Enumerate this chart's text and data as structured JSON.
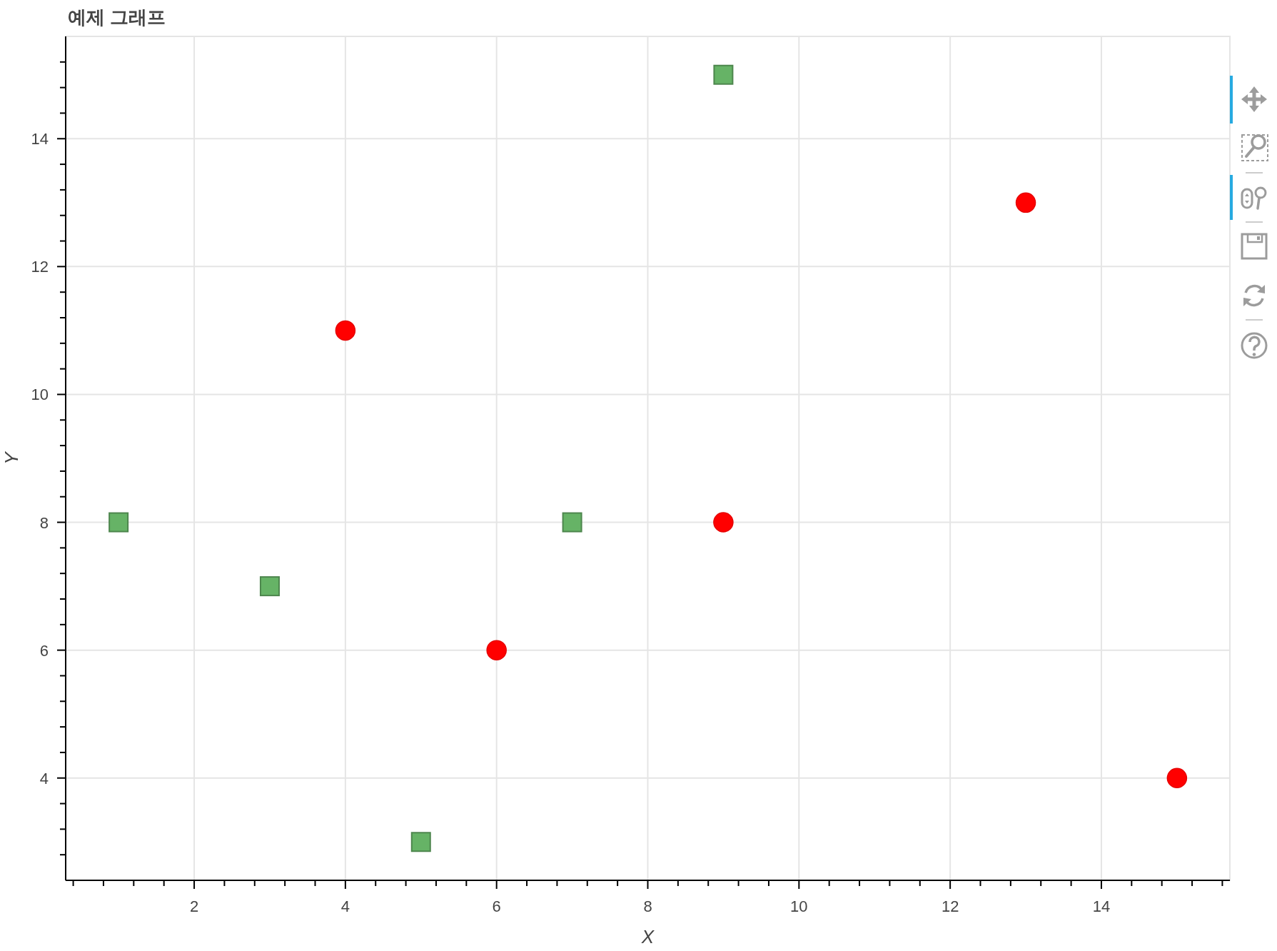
{
  "chart_data": {
    "type": "scatter",
    "title": "예제 그래프",
    "xlabel": "X",
    "ylabel": "Y",
    "xlim": [
      0.3,
      15.7
    ],
    "ylim": [
      2.4,
      15.6
    ],
    "xticks": [
      {
        "value": 0.4,
        "label": null
      },
      {
        "value": 0.8,
        "label": null
      },
      {
        "value": 1.2,
        "label": null
      },
      {
        "value": 1.6,
        "label": null
      },
      2,
      {
        "value": 2.4,
        "label": null
      },
      {
        "value": 2.8,
        "label": null
      },
      {
        "value": 3.2,
        "label": null
      },
      {
        "value": 3.6,
        "label": null
      },
      4,
      {
        "value": 4.4,
        "label": null
      },
      {
        "value": 4.8,
        "label": null
      },
      {
        "value": 5.2,
        "label": null
      },
      {
        "value": 5.6,
        "label": null
      },
      6,
      {
        "value": 6.4,
        "label": null
      },
      {
        "value": 6.8,
        "label": null
      },
      {
        "value": 7.2,
        "label": null
      },
      {
        "value": 7.6,
        "label": null
      },
      8,
      {
        "value": 8.4,
        "label": null
      },
      {
        "value": 8.8,
        "label": null
      },
      {
        "value": 9.2,
        "label": null
      },
      {
        "value": 9.6,
        "label": null
      },
      10,
      {
        "value": 10.4,
        "label": null
      },
      {
        "value": 10.8,
        "label": null
      },
      {
        "value": 11.2,
        "label": null
      },
      {
        "value": 11.6,
        "label": null
      },
      12,
      {
        "value": 12.4,
        "label": null
      },
      {
        "value": 12.8,
        "label": null
      },
      {
        "value": 13.2,
        "label": null
      },
      {
        "value": 13.6,
        "label": null
      },
      14,
      {
        "value": 14.4,
        "label": null
      },
      {
        "value": 14.8,
        "label": null
      },
      {
        "value": 15.2,
        "label": null
      },
      {
        "value": 15.6,
        "label": null
      }
    ],
    "yticks": [
      {
        "value": 2.8,
        "label": null
      },
      {
        "value": 3.2,
        "label": null
      },
      {
        "value": 3.6,
        "label": null
      },
      4,
      {
        "value": 4.4,
        "label": null
      },
      {
        "value": 4.8,
        "label": null
      },
      {
        "value": 5.2,
        "label": null
      },
      {
        "value": 5.6,
        "label": null
      },
      6,
      {
        "value": 6.4,
        "label": null
      },
      {
        "value": 6.8,
        "label": null
      },
      {
        "value": 7.2,
        "label": null
      },
      {
        "value": 7.6,
        "label": null
      },
      8,
      {
        "value": 8.4,
        "label": null
      },
      {
        "value": 8.8,
        "label": null
      },
      {
        "value": 9.2,
        "label": null
      },
      {
        "value": 9.6,
        "label": null
      },
      10,
      {
        "value": 10.4,
        "label": null
      },
      {
        "value": 10.8,
        "label": null
      },
      {
        "value": 11.2,
        "label": null
      },
      {
        "value": 11.6,
        "label": null
      },
      12,
      {
        "value": 12.4,
        "label": null
      },
      {
        "value": 12.8,
        "label": null
      },
      {
        "value": 13.2,
        "label": null
      },
      {
        "value": 13.6,
        "label": null
      },
      14,
      {
        "value": 14.4,
        "label": null
      },
      {
        "value": 14.8,
        "label": null
      },
      {
        "value": 15.2,
        "label": null
      }
    ],
    "grid": true,
    "series": [
      {
        "color": "#66b366",
        "marker": "square",
        "x": [
          1,
          3,
          5,
          7,
          9
        ],
        "values": [
          8,
          7,
          3,
          8,
          15
        ]
      },
      {
        "color": "#ff0000",
        "marker": "circle",
        "x": [
          4,
          6,
          9,
          13,
          15
        ],
        "values": [
          11,
          6,
          8,
          13,
          4
        ]
      }
    ]
  }
}
